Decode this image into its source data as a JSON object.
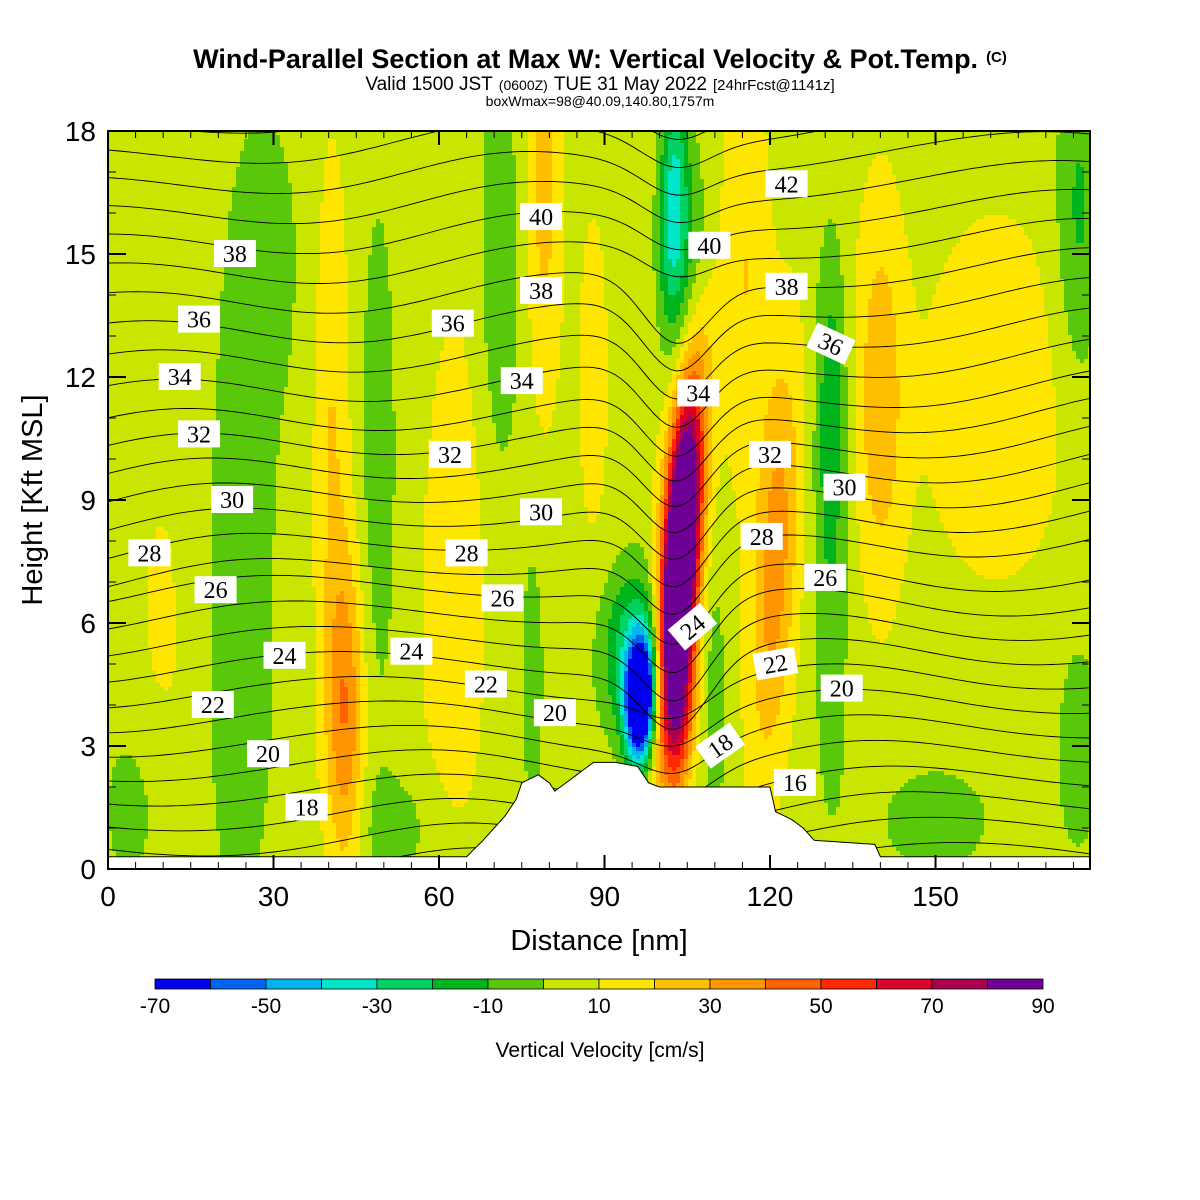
{
  "header": {
    "title": "Wind-Parallel Section at Max W: Vertical Velocity & Pot.Temp.",
    "title_mark": "(C)",
    "valid_main": "Valid 1500 JST",
    "valid_z": "(0600Z)",
    "valid_date": "TUE 31 May 2022",
    "valid_fcst": "[24hrFcst@1141z]",
    "box_info": "boxWmax=98@40.09,140.80,1757m"
  },
  "colors": {
    "velocity_scale": [
      "#0000f0",
      "#0064f0",
      "#00b4f0",
      "#00e6c8",
      "#00d264",
      "#00b41e",
      "#5ac80a",
      "#c8e600",
      "#ffe600",
      "#ffbe00",
      "#ff9600",
      "#ff6400",
      "#ff2800",
      "#dc0028",
      "#aa0050",
      "#6e0096"
    ],
    "terrain": "#ffffff",
    "contour": "#000000"
  },
  "chart_data": {
    "type": "heatmap",
    "xlabel": "Distance [nm]",
    "ylabel": "Height [Kft MSL]",
    "xlim": [
      0,
      178
    ],
    "ylim": [
      0,
      18
    ],
    "x_ticks": [
      "0",
      "30",
      "60",
      "90",
      "120",
      "150"
    ],
    "y_ticks": [
      "0",
      "3",
      "6",
      "9",
      "12",
      "15",
      "18"
    ],
    "colorbar": {
      "label": "Vertical Velocity [cm/s]",
      "levels": [
        -70,
        -60,
        -50,
        -40,
        -30,
        -20,
        -10,
        0,
        10,
        20,
        30,
        40,
        50,
        60,
        70,
        80,
        90
      ],
      "tick_labels": [
        "-70",
        "-50",
        "-30",
        "-10",
        "10",
        "30",
        "50",
        "70",
        "90"
      ]
    },
    "terrain_profile": [
      [
        65,
        0.3
      ],
      [
        68,
        0.7
      ],
      [
        70,
        1.0
      ],
      [
        72,
        1.3
      ],
      [
        74,
        1.7
      ],
      [
        75,
        2.1
      ],
      [
        78,
        2.3
      ],
      [
        80,
        2.1
      ],
      [
        81,
        1.9
      ],
      [
        83,
        2.1
      ],
      [
        85,
        2.3
      ],
      [
        88,
        2.6
      ],
      [
        92,
        2.6
      ],
      [
        96,
        2.5
      ],
      [
        98,
        2.1
      ],
      [
        100,
        2.0
      ],
      [
        110,
        2.0
      ],
      [
        120,
        2.0
      ],
      [
        121,
        1.4
      ],
      [
        124,
        1.2
      ],
      [
        126,
        1.0
      ],
      [
        128,
        0.7
      ],
      [
        139,
        0.6
      ],
      [
        140,
        0.3
      ],
      [
        141,
        0.3
      ]
    ],
    "velocity_features": [
      {
        "x": 103.5,
        "h": 7.0,
        "sx": 2.2,
        "sy": 2.6,
        "w": 140,
        "tilt": 0.42
      },
      {
        "x": 105.5,
        "h": 11.0,
        "sx": 2.5,
        "sy": 2.5,
        "w": 38,
        "tilt": 0.42
      },
      {
        "x": 104.0,
        "h": 3.6,
        "sx": 1.8,
        "sy": 1.4,
        "w": 30,
        "tilt": 0.42
      },
      {
        "x": 96.5,
        "h": 4.1,
        "sx": 1.8,
        "sy": 1.0,
        "w": -112,
        "tilt": 0.15
      },
      {
        "x": 95.0,
        "h": 5.4,
        "sx": 4.0,
        "sy": 1.4,
        "w": -32,
        "tilt": 0.3
      },
      {
        "x": 102.5,
        "h": 16.2,
        "sx": 1.8,
        "sy": 1.9,
        "w": -42,
        "tilt": 0.15
      },
      {
        "x": 105.5,
        "h": 13.5,
        "sx": 2.5,
        "sy": 2.4,
        "w": -24,
        "tilt": 0.3
      },
      {
        "x": 43.0,
        "h": 3.8,
        "sx": 2.4,
        "sy": 2.8,
        "w": 33,
        "tilt": 0
      },
      {
        "x": 40.5,
        "h": 11.0,
        "sx": 2.2,
        "sy": 4.5,
        "w": 14,
        "tilt": 0
      },
      {
        "x": 63.0,
        "h": 7.0,
        "sx": 4.0,
        "sy": 4.5,
        "w": 12,
        "tilt": 0.12
      },
      {
        "x": 79.0,
        "h": 16.5,
        "sx": 2.2,
        "sy": 3.5,
        "w": 18,
        "tilt": 0
      },
      {
        "x": 121.0,
        "h": 7.5,
        "sx": 2.8,
        "sy": 3.5,
        "w": 30,
        "tilt": 0.35
      },
      {
        "x": 115.5,
        "h": 14.5,
        "sx": 3.0,
        "sy": 3.5,
        "w": 14,
        "tilt": 0
      },
      {
        "x": 140.0,
        "h": 11.5,
        "sx": 3.0,
        "sy": 3.2,
        "w": 22,
        "tilt": 0
      },
      {
        "x": 161.0,
        "h": 11.5,
        "sx": 9.0,
        "sy": 3.0,
        "w": 12,
        "tilt": 0
      },
      {
        "x": 131.0,
        "h": 11.5,
        "sx": 2.0,
        "sy": 2.8,
        "w": -20,
        "tilt": 0
      },
      {
        "x": 131.0,
        "h": 6.0,
        "sx": 2.5,
        "sy": 3.5,
        "w": -11,
        "tilt": 0
      },
      {
        "x": 24.0,
        "h": 6.0,
        "sx": 5.0,
        "sy": 6.0,
        "w": -12,
        "tilt": 0
      },
      {
        "x": 10.0,
        "h": 5.0,
        "sx": 4.0,
        "sy": 4.0,
        "w": 6,
        "tilt": 0
      },
      {
        "x": 49.0,
        "h": 10.0,
        "sx": 2.5,
        "sy": 5.0,
        "w": -12,
        "tilt": 0
      },
      {
        "x": 71.0,
        "h": 14.5,
        "sx": 3.0,
        "sy": 4.0,
        "w": -13,
        "tilt": 0
      },
      {
        "x": 77.0,
        "h": 4.5,
        "sx": 1.5,
        "sy": 2.5,
        "w": -12,
        "tilt": 0
      },
      {
        "x": 110.0,
        "h": 4.0,
        "sx": 1.5,
        "sy": 2.5,
        "w": -12,
        "tilt": 0
      },
      {
        "x": 52.0,
        "h": 1.0,
        "sx": 6.0,
        "sy": 1.0,
        "w": -10,
        "tilt": 0
      },
      {
        "x": 150.0,
        "h": 1.2,
        "sx": 10.0,
        "sy": 1.3,
        "w": -9,
        "tilt": 0
      },
      {
        "x": 5.0,
        "h": 1.5,
        "sx": 5.0,
        "sy": 1.8,
        "w": -10,
        "tilt": 0
      },
      {
        "x": 176.0,
        "h": 16.0,
        "sx": 3.0,
        "sy": 3.0,
        "w": -18,
        "tilt": 0
      },
      {
        "x": 176.0,
        "h": 3.0,
        "sx": 3.0,
        "sy": 2.0,
        "w": -12,
        "tilt": 0
      },
      {
        "x": 29.0,
        "h": 15.0,
        "sx": 5.0,
        "sy": 3.0,
        "w": -9,
        "tilt": 0
      },
      {
        "x": 88.0,
        "h": 12.0,
        "sx": 2.0,
        "sy": 3.0,
        "w": 9,
        "tilt": 0
      }
    ],
    "theta_contours": {
      "min": 14,
      "max": 44,
      "step": 1
    },
    "theta_labels": [
      {
        "text": "18",
        "x": 36,
        "h": 1.5,
        "rot": 0
      },
      {
        "text": "20",
        "x": 29,
        "h": 2.8,
        "rot": 0
      },
      {
        "text": "22",
        "x": 19,
        "h": 4.0,
        "rot": 0
      },
      {
        "text": "24",
        "x": 32,
        "h": 5.2,
        "rot": 0
      },
      {
        "text": "26",
        "x": 19.5,
        "h": 6.8,
        "rot": 0
      },
      {
        "text": "28",
        "x": 7.5,
        "h": 7.7,
        "rot": 0
      },
      {
        "text": "30",
        "x": 22.5,
        "h": 9.0,
        "rot": 0
      },
      {
        "text": "32",
        "x": 16.5,
        "h": 10.6,
        "rot": 0
      },
      {
        "text": "34",
        "x": 13,
        "h": 12.0,
        "rot": 0
      },
      {
        "text": "36",
        "x": 16.5,
        "h": 13.4,
        "rot": 0
      },
      {
        "text": "38",
        "x": 23,
        "h": 15.0,
        "rot": 0
      },
      {
        "text": "24",
        "x": 55,
        "h": 5.3,
        "rot": 0
      },
      {
        "text": "22",
        "x": 68.5,
        "h": 4.5,
        "rot": 0
      },
      {
        "text": "20",
        "x": 81,
        "h": 3.8,
        "rot": 0
      },
      {
        "text": "26",
        "x": 71.5,
        "h": 6.6,
        "rot": 0
      },
      {
        "text": "28",
        "x": 65,
        "h": 7.7,
        "rot": 0
      },
      {
        "text": "30",
        "x": 78.5,
        "h": 8.7,
        "rot": 0
      },
      {
        "text": "32",
        "x": 62,
        "h": 10.1,
        "rot": 0
      },
      {
        "text": "34",
        "x": 75,
        "h": 11.9,
        "rot": 0
      },
      {
        "text": "36",
        "x": 62.5,
        "h": 13.3,
        "rot": 0
      },
      {
        "text": "38",
        "x": 78.5,
        "h": 14.1,
        "rot": 0
      },
      {
        "text": "40",
        "x": 78.5,
        "h": 15.9,
        "rot": 0
      },
      {
        "text": "24",
        "x": 106,
        "h": 5.9,
        "rot": -40
      },
      {
        "text": "18",
        "x": 111,
        "h": 3.0,
        "rot": -35
      },
      {
        "text": "16",
        "x": 124.5,
        "h": 2.1,
        "rot": 0
      },
      {
        "text": "22",
        "x": 121,
        "h": 5.0,
        "rot": -10
      },
      {
        "text": "20",
        "x": 133,
        "h": 4.4,
        "rot": 0
      },
      {
        "text": "26",
        "x": 130,
        "h": 7.1,
        "rot": 0
      },
      {
        "text": "28",
        "x": 118.5,
        "h": 8.1,
        "rot": 0
      },
      {
        "text": "30",
        "x": 133.5,
        "h": 9.3,
        "rot": 0
      },
      {
        "text": "32",
        "x": 120,
        "h": 10.1,
        "rot": 0
      },
      {
        "text": "34",
        "x": 107,
        "h": 11.6,
        "rot": 0
      },
      {
        "text": "36",
        "x": 131,
        "h": 12.8,
        "rot": 25
      },
      {
        "text": "38",
        "x": 123,
        "h": 14.2,
        "rot": 0
      },
      {
        "text": "40",
        "x": 109,
        "h": 15.2,
        "rot": 0
      },
      {
        "text": "42",
        "x": 123,
        "h": 16.7,
        "rot": 0
      }
    ]
  }
}
